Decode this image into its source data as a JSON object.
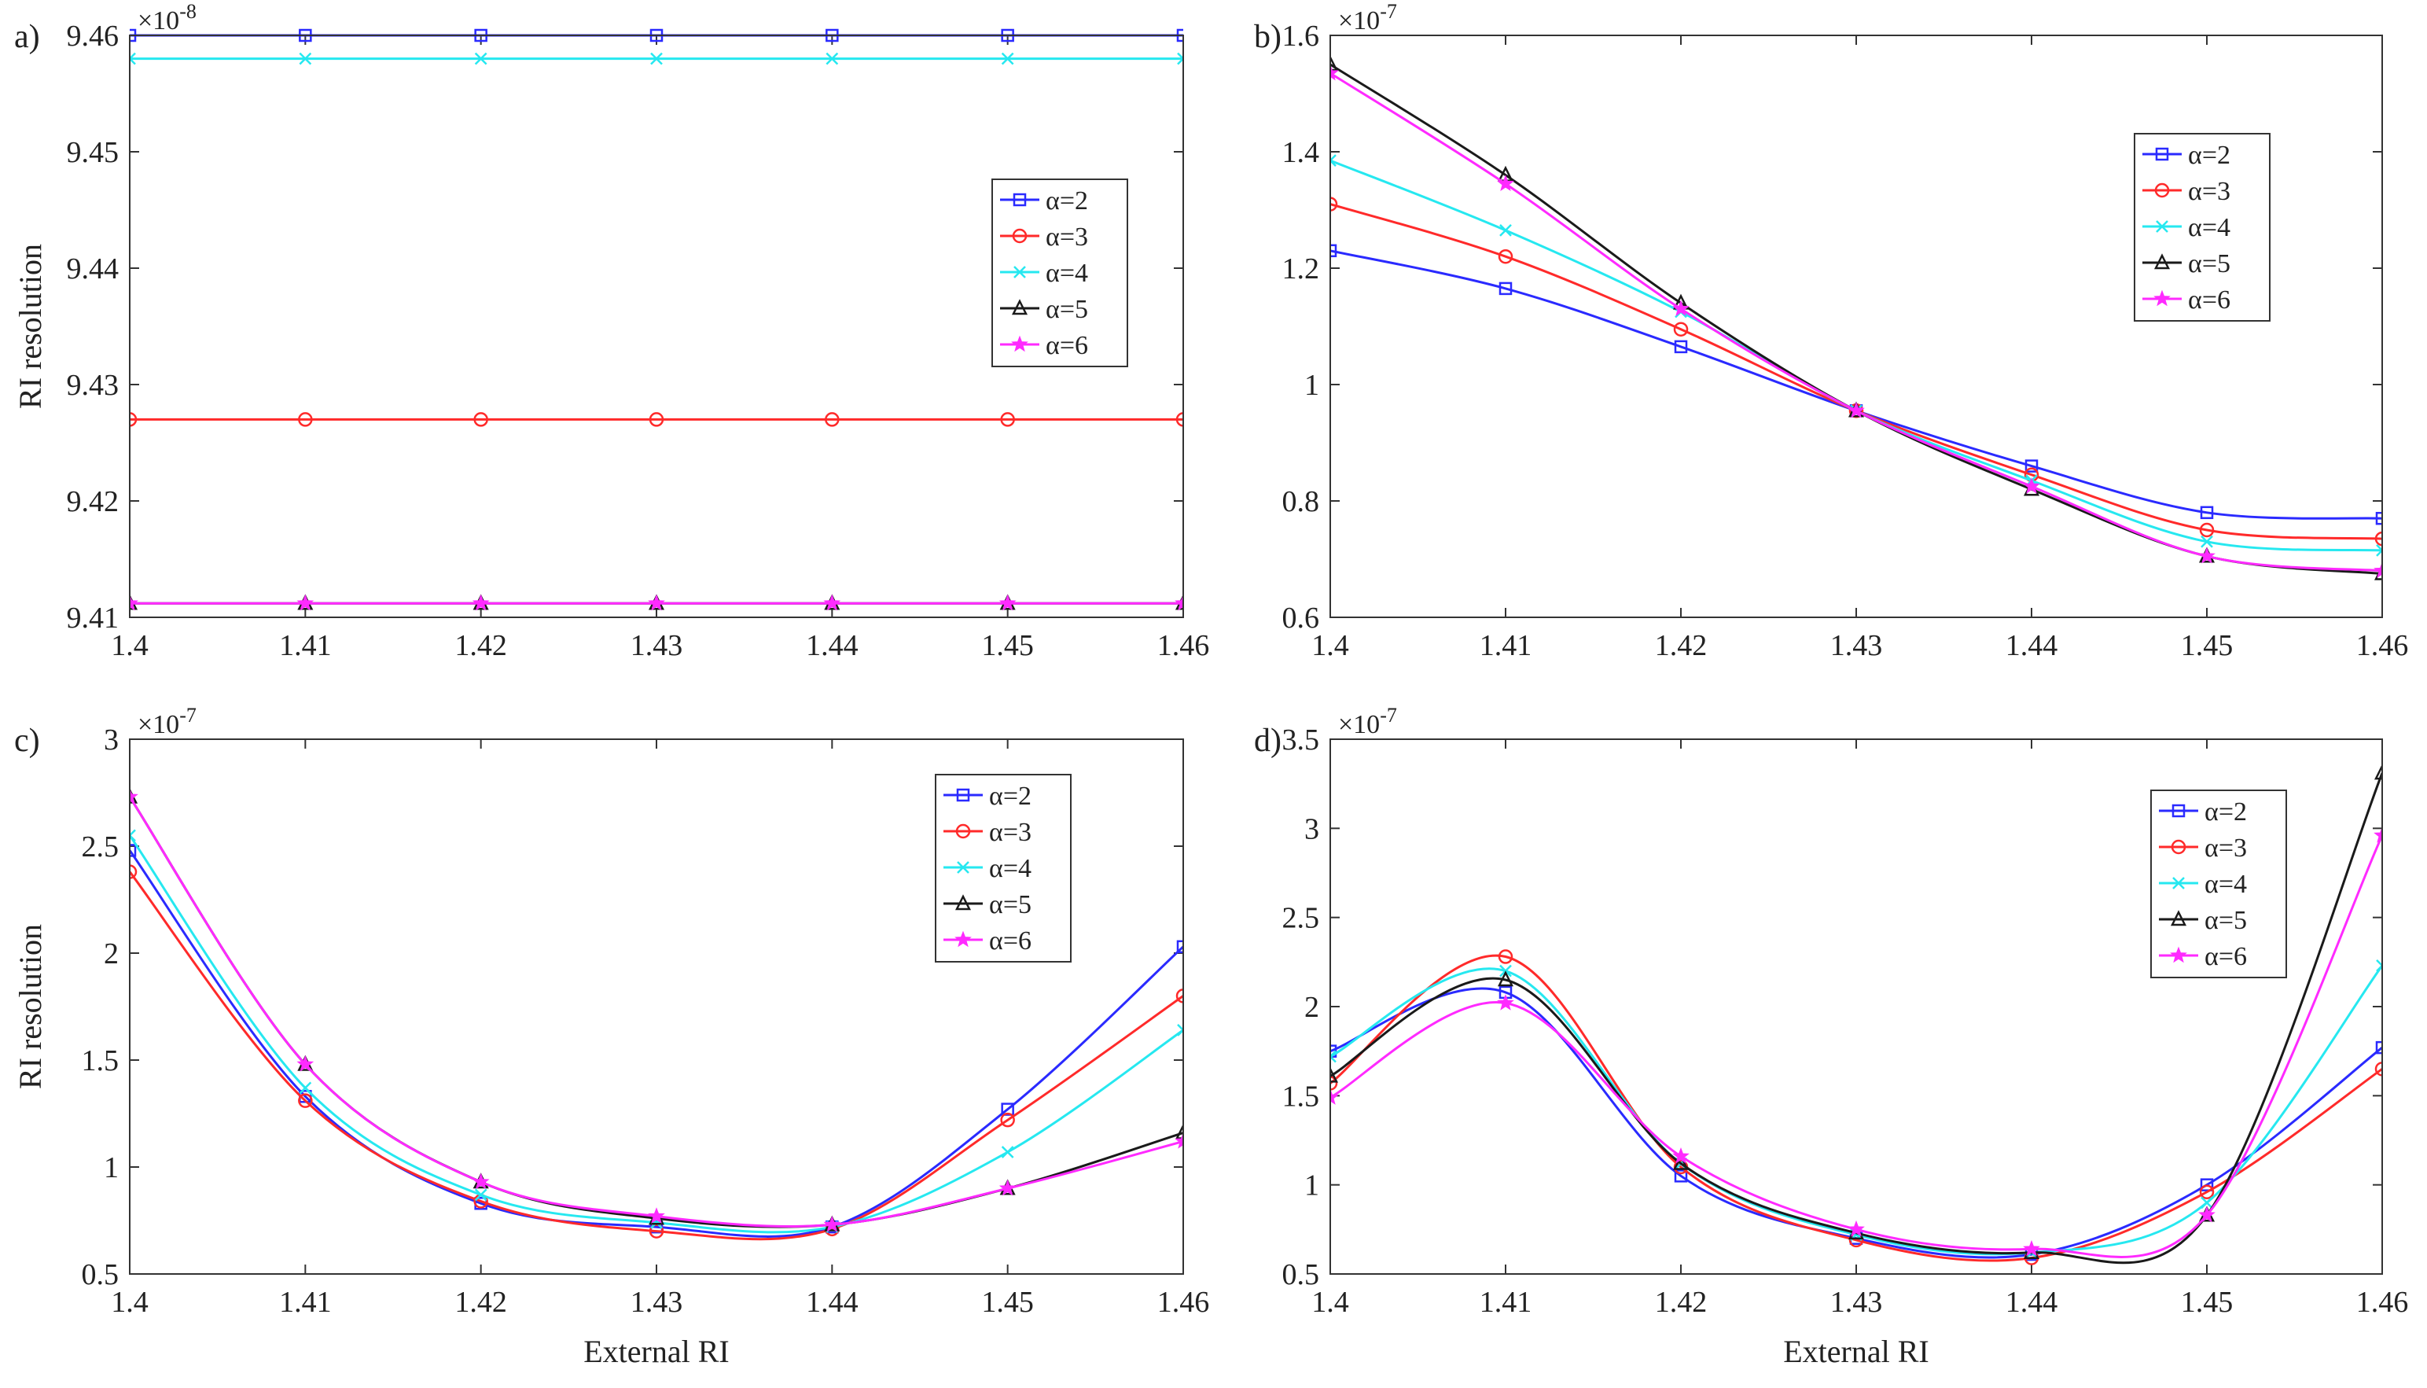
{
  "chart_data": [
    {
      "type": "line",
      "panel_label": "a)",
      "multiplier": "×10",
      "exponent": "-8",
      "xlabel": "",
      "ylabel": "RI resolution",
      "xlim": [
        1.4,
        1.46
      ],
      "ylim": [
        9.41,
        9.46
      ],
      "xticks": [
        "1.4",
        "1.41",
        "1.42",
        "1.43",
        "1.44",
        "1.45",
        "1.46"
      ],
      "yticks": [
        "9.41",
        "9.42",
        "9.43",
        "9.44",
        "9.45",
        "9.46"
      ],
      "legend_position": "upper-right",
      "x": [
        1.4,
        1.41,
        1.42,
        1.43,
        1.44,
        1.45,
        1.46
      ],
      "series": [
        {
          "name": "α=2",
          "values": [
            9.46,
            9.46,
            9.46,
            9.46,
            9.46,
            9.46,
            9.46
          ]
        },
        {
          "name": "α=3",
          "values": [
            9.427,
            9.427,
            9.427,
            9.427,
            9.427,
            9.427,
            9.427
          ]
        },
        {
          "name": "α=4",
          "values": [
            9.458,
            9.458,
            9.458,
            9.458,
            9.458,
            9.458,
            9.458
          ]
        },
        {
          "name": "α=5",
          "values": [
            9.4112,
            9.4112,
            9.4112,
            9.4112,
            9.4112,
            9.4112,
            9.4112
          ]
        },
        {
          "name": "α=6",
          "values": [
            9.4112,
            9.4112,
            9.4112,
            9.4112,
            9.4112,
            9.4112,
            9.4112
          ]
        }
      ]
    },
    {
      "type": "line",
      "panel_label": "b)",
      "multiplier": "×10",
      "exponent": "-7",
      "xlabel": "",
      "ylabel": "",
      "xlim": [
        1.4,
        1.46
      ],
      "ylim": [
        0.6,
        1.6
      ],
      "xticks": [
        "1.4",
        "1.41",
        "1.42",
        "1.43",
        "1.44",
        "1.45",
        "1.46"
      ],
      "yticks": [
        "0.6",
        "0.8",
        "1",
        "1.2",
        "1.4",
        "1.6"
      ],
      "legend_position": "upper-right",
      "x": [
        1.4,
        1.41,
        1.42,
        1.43,
        1.44,
        1.45,
        1.46
      ],
      "series": [
        {
          "name": "α=2",
          "values": [
            1.23,
            1.165,
            1.065,
            0.955,
            0.86,
            0.78,
            0.77
          ]
        },
        {
          "name": "α=3",
          "values": [
            1.31,
            1.22,
            1.095,
            0.955,
            0.845,
            0.75,
            0.735
          ]
        },
        {
          "name": "α=4",
          "values": [
            1.385,
            1.265,
            1.125,
            0.955,
            0.835,
            0.73,
            0.715
          ]
        },
        {
          "name": "α=5",
          "values": [
            1.55,
            1.36,
            1.14,
            0.955,
            0.82,
            0.705,
            0.675
          ]
        },
        {
          "name": "α=6",
          "values": [
            1.535,
            1.345,
            1.13,
            0.955,
            0.825,
            0.705,
            0.68
          ]
        }
      ]
    },
    {
      "type": "line",
      "panel_label": "c)",
      "multiplier": "×10",
      "exponent": "-7",
      "xlabel": "External RI",
      "ylabel": "RI resolution",
      "xlim": [
        1.4,
        1.46
      ],
      "ylim": [
        0.5,
        3
      ],
      "xticks": [
        "1.4",
        "1.41",
        "1.42",
        "1.43",
        "1.44",
        "1.45",
        "1.46"
      ],
      "yticks": [
        "0.5",
        "1",
        "1.5",
        "2",
        "2.5",
        "3"
      ],
      "legend_position": "upper-right",
      "x": [
        1.4,
        1.41,
        1.42,
        1.43,
        1.44,
        1.45,
        1.46
      ],
      "series": [
        {
          "name": "α=2",
          "values": [
            2.48,
            1.33,
            0.83,
            0.72,
            0.72,
            1.27,
            2.03
          ]
        },
        {
          "name": "α=3",
          "values": [
            2.38,
            1.31,
            0.84,
            0.7,
            0.71,
            1.22,
            1.8
          ]
        },
        {
          "name": "α=4",
          "values": [
            2.55,
            1.37,
            0.87,
            0.74,
            0.72,
            1.07,
            1.64
          ]
        },
        {
          "name": "α=5",
          "values": [
            2.73,
            1.48,
            0.93,
            0.76,
            0.73,
            0.9,
            1.16
          ]
        },
        {
          "name": "α=6",
          "values": [
            2.73,
            1.48,
            0.93,
            0.77,
            0.73,
            0.9,
            1.12
          ]
        }
      ]
    },
    {
      "type": "line",
      "panel_label": "d)",
      "multiplier": "×10",
      "exponent": "-7",
      "xlabel": "External RI",
      "ylabel": "",
      "xlim": [
        1.4,
        1.46
      ],
      "ylim": [
        0.5,
        3.5
      ],
      "xticks": [
        "1.4",
        "1.41",
        "1.42",
        "1.43",
        "1.44",
        "1.45",
        "1.46"
      ],
      "yticks": [
        "0.5",
        "1",
        "1.5",
        "2",
        "2.5",
        "3",
        "3.5"
      ],
      "legend_position": "upper-right",
      "x": [
        1.4,
        1.41,
        1.42,
        1.43,
        1.44,
        1.45,
        1.46
      ],
      "series": [
        {
          "name": "α=2",
          "values": [
            1.75,
            2.08,
            1.05,
            0.7,
            0.61,
            1.0,
            1.77
          ]
        },
        {
          "name": "α=3",
          "values": [
            1.57,
            2.28,
            1.1,
            0.69,
            0.59,
            0.96,
            1.65
          ]
        },
        {
          "name": "α=4",
          "values": [
            1.72,
            2.2,
            1.12,
            0.72,
            0.62,
            0.9,
            2.23
          ]
        },
        {
          "name": "α=5",
          "values": [
            1.61,
            2.15,
            1.12,
            0.73,
            0.62,
            0.83,
            3.31
          ]
        },
        {
          "name": "α=6",
          "values": [
            1.49,
            2.02,
            1.16,
            0.75,
            0.64,
            0.83,
            2.96
          ]
        }
      ]
    }
  ],
  "series_colors": [
    "#2a2aff",
    "#ff2a2a",
    "#26e8f0",
    "#1a1a1a",
    "#ff2aff"
  ],
  "series_markers": [
    "square",
    "circle",
    "x",
    "triangle",
    "star"
  ]
}
